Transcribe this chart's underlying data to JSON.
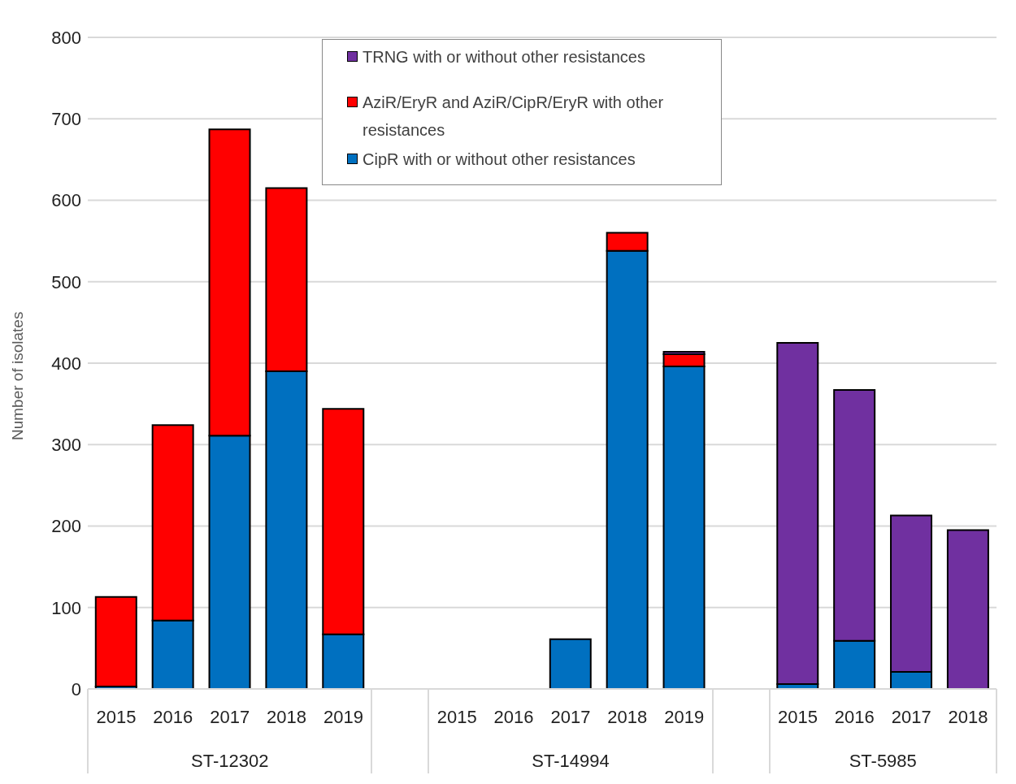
{
  "chart_data": {
    "type": "bar",
    "stacked": true,
    "ylabel": "Number of isolates",
    "categories": [
      "2015",
      "2016",
      "2017",
      "2018",
      "2019",
      null,
      "2015",
      "2016",
      "2017",
      "2018",
      "2019",
      null,
      "2015",
      "2016",
      "2017",
      "2018"
    ],
    "series": [
      {
        "name": "CipR with or without other resistances",
        "color": "#0070c0",
        "values": [
          3,
          84,
          311,
          390,
          67,
          null,
          null,
          null,
          61,
          538,
          396,
          null,
          6,
          59,
          21,
          null
        ]
      },
      {
        "name": "AziR/EryR and AziR/CipR/EryR with other resistances",
        "color": "#ff0000",
        "values": [
          110,
          240,
          376,
          225,
          277,
          null,
          null,
          null,
          null,
          22,
          15,
          null,
          null,
          null,
          null,
          null
        ]
      },
      {
        "name": "TRNG with or without other resistances",
        "color": "#7030a0",
        "values": [
          null,
          null,
          null,
          null,
          null,
          null,
          null,
          null,
          null,
          null,
          3,
          null,
          419,
          308,
          192,
          195
        ]
      }
    ],
    "annotations": [
      "ST-12302",
      "ST-14994",
      "ST-5985"
    ],
    "ylim": [
      0,
      800
    ],
    "yticks": [
      0,
      100,
      200,
      300,
      400,
      500,
      600,
      700,
      800
    ],
    "grid": "y",
    "legend": "top"
  }
}
